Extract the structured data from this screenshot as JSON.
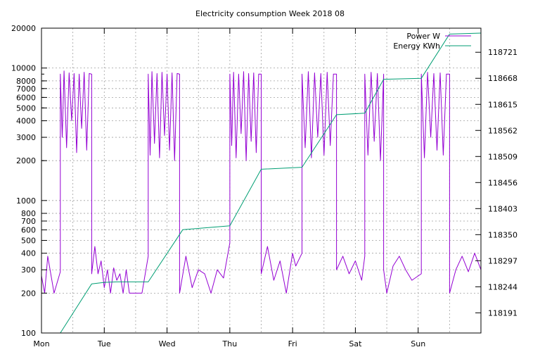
{
  "chart_data": {
    "type": "line",
    "title": "Electricity consumption Week 2018 08",
    "xlabel": "",
    "ylabel": "",
    "x_categories": [
      "Mon",
      "Tue",
      "Wed",
      "Thu",
      "Fri",
      "Sat",
      "Sun"
    ],
    "x_unit": "day index (0 = Mon 00:00)",
    "xlim": [
      0,
      7
    ],
    "y_left": {
      "scale": "log",
      "ylim": [
        100,
        20000
      ],
      "ticks": [
        100,
        200,
        300,
        400,
        500,
        600,
        700,
        800,
        1000,
        2000,
        3000,
        4000,
        5000,
        6000,
        7000,
        8000,
        10000,
        20000
      ]
    },
    "y_right": {
      "scale": "linear",
      "ylim": [
        118150,
        118770
      ],
      "ticks": [
        118191,
        118244,
        118297,
        118350,
        118403,
        118456,
        118509,
        118562,
        118615,
        118668,
        118721
      ]
    },
    "grid": true,
    "legend_position": "top-right",
    "series": [
      {
        "name": "Power W",
        "axis": "left",
        "color": "#9400d3",
        "x": [
          0.0,
          0.05,
          0.1,
          0.2,
          0.3,
          0.3,
          0.33,
          0.36,
          0.4,
          0.44,
          0.48,
          0.52,
          0.56,
          0.6,
          0.64,
          0.68,
          0.72,
          0.76,
          0.8,
          0.8,
          0.85,
          0.9,
          0.95,
          1.0,
          1.05,
          1.1,
          1.15,
          1.2,
          1.25,
          1.3,
          1.35,
          1.4,
          1.5,
          1.6,
          1.7,
          1.7,
          1.73,
          1.76,
          1.8,
          1.84,
          1.88,
          1.92,
          1.96,
          2.0,
          2.04,
          2.08,
          2.12,
          2.16,
          2.2,
          2.2,
          2.3,
          2.4,
          2.5,
          2.6,
          2.7,
          2.8,
          2.9,
          3.0,
          3.0,
          3.03,
          3.06,
          3.1,
          3.14,
          3.18,
          3.22,
          3.26,
          3.3,
          3.34,
          3.38,
          3.42,
          3.46,
          3.5,
          3.5,
          3.6,
          3.7,
          3.8,
          3.9,
          4.0,
          4.05,
          4.15,
          4.15,
          4.2,
          4.25,
          4.3,
          4.35,
          4.4,
          4.45,
          4.5,
          4.55,
          4.6,
          4.65,
          4.7,
          4.7,
          4.8,
          4.9,
          5.0,
          5.1,
          5.15,
          5.15,
          5.2,
          5.25,
          5.3,
          5.35,
          5.4,
          5.45,
          5.45,
          5.5,
          5.6,
          5.7,
          5.8,
          5.9,
          6.05,
          6.05,
          6.1,
          6.15,
          6.2,
          6.25,
          6.3,
          6.35,
          6.4,
          6.45,
          6.5,
          6.5,
          6.6,
          6.7,
          6.8,
          6.9,
          7.0
        ],
        "values": [
          270,
          200,
          380,
          200,
          290,
          9000,
          3000,
          9500,
          2500,
          9200,
          4000,
          9100,
          2300,
          9000,
          3500,
          9300,
          2400,
          9100,
          9000,
          280,
          450,
          280,
          350,
          220,
          300,
          200,
          310,
          250,
          280,
          200,
          300,
          200,
          200,
          200,
          380,
          9000,
          2200,
          9400,
          2700,
          9100,
          2100,
          9300,
          3100,
          9000,
          2400,
          9200,
          2000,
          9100,
          9000,
          200,
          380,
          220,
          300,
          280,
          200,
          300,
          260,
          480,
          9000,
          2600,
          9300,
          2100,
          9000,
          3200,
          9400,
          2000,
          9100,
          2800,
          9200,
          2300,
          9000,
          9000,
          280,
          450,
          250,
          350,
          200,
          400,
          320,
          400,
          9000,
          2500,
          9400,
          2100,
          9200,
          3000,
          9100,
          2200,
          9300,
          2600,
          9000,
          9000,
          300,
          380,
          280,
          350,
          250,
          380,
          9000,
          2200,
          9300,
          2800,
          9100,
          2000,
          9000,
          300,
          200,
          320,
          380,
          300,
          250,
          280,
          9000,
          2100,
          9300,
          3000,
          9100,
          2400,
          9200,
          2200,
          9000,
          9000,
          200,
          300,
          380,
          290,
          400,
          300
        ]
      },
      {
        "name": "Energy KWh",
        "axis": "right",
        "color": "#009e73",
        "x": [
          0.0,
          0.3,
          0.8,
          1.0,
          1.2,
          1.7,
          2.25,
          3.0,
          3.5,
          4.15,
          4.7,
          5.15,
          5.45,
          6.05,
          6.5,
          7.0
        ],
        "values": [
          118150,
          118150,
          118250,
          118253,
          118254,
          118254,
          118360,
          118368,
          118483,
          118487,
          118594,
          118597,
          118666,
          118668,
          118758,
          118760
        ]
      }
    ]
  }
}
